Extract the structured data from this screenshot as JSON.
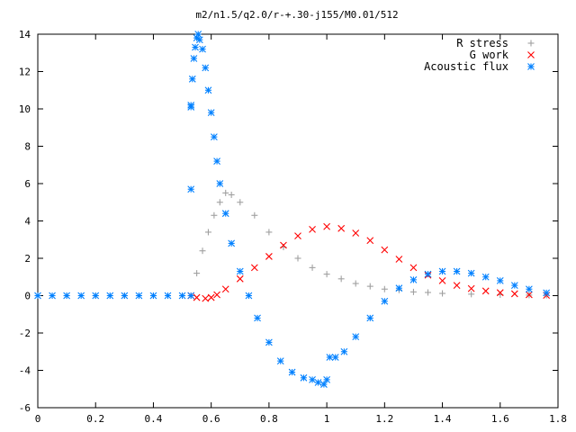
{
  "chart_data": {
    "type": "scatter",
    "title": "m2/n1.5/q2.0/r-+.30-j155/M0.01/512",
    "xlabel": "",
    "ylabel": "",
    "xlim": [
      0,
      1.8
    ],
    "ylim": [
      -6,
      14
    ],
    "xticks": [
      0,
      0.2,
      0.4,
      0.6,
      0.8,
      1,
      1.2,
      1.4,
      1.6,
      1.8
    ],
    "xtick_labels": [
      "0",
      "0.2",
      "0.4",
      "0.6",
      "0.8",
      "1",
      "1.2",
      "1.4",
      "1.6",
      "1.8"
    ],
    "yticks": [
      -6,
      -4,
      -2,
      0,
      2,
      4,
      6,
      8,
      10,
      12,
      14
    ],
    "ytick_labels": [
      "-6",
      "-4",
      "-2",
      "0",
      "2",
      "4",
      "6",
      "8",
      "10",
      "12",
      "14"
    ],
    "grid": false,
    "legend_position": "top-right",
    "series": [
      {
        "name": "R stress",
        "marker": "plus",
        "color": "#a0a0a0",
        "points": [
          [
            0.0,
            0
          ],
          [
            0.1,
            0
          ],
          [
            0.2,
            0
          ],
          [
            0.3,
            0
          ],
          [
            0.4,
            0
          ],
          [
            0.5,
            0
          ],
          [
            0.53,
            0
          ],
          [
            0.55,
            1.2
          ],
          [
            0.57,
            2.4
          ],
          [
            0.59,
            3.4
          ],
          [
            0.61,
            4.3
          ],
          [
            0.63,
            5.0
          ],
          [
            0.65,
            5.5
          ],
          [
            0.67,
            5.4
          ],
          [
            0.7,
            5.0
          ],
          [
            0.75,
            4.3
          ],
          [
            0.8,
            3.4
          ],
          [
            0.85,
            2.6
          ],
          [
            0.9,
            2.0
          ],
          [
            0.95,
            1.5
          ],
          [
            1.0,
            1.15
          ],
          [
            1.05,
            0.9
          ],
          [
            1.1,
            0.65
          ],
          [
            1.15,
            0.5
          ],
          [
            1.2,
            0.35
          ],
          [
            1.25,
            0.3
          ],
          [
            1.3,
            0.2
          ],
          [
            1.35,
            0.17
          ],
          [
            1.4,
            0.12
          ],
          [
            1.5,
            0.08
          ],
          [
            1.6,
            0.05
          ],
          [
            1.7,
            0.03
          ],
          [
            1.76,
            0.02
          ]
        ]
      },
      {
        "name": "G work",
        "marker": "cross",
        "color": "#ff0000",
        "points": [
          [
            0.53,
            0
          ],
          [
            0.55,
            -0.1
          ],
          [
            0.58,
            -0.15
          ],
          [
            0.6,
            -0.1
          ],
          [
            0.62,
            0.05
          ],
          [
            0.65,
            0.35
          ],
          [
            0.7,
            0.9
          ],
          [
            0.75,
            1.5
          ],
          [
            0.8,
            2.1
          ],
          [
            0.85,
            2.7
          ],
          [
            0.9,
            3.2
          ],
          [
            0.95,
            3.55
          ],
          [
            1.0,
            3.7
          ],
          [
            1.05,
            3.6
          ],
          [
            1.1,
            3.35
          ],
          [
            1.15,
            2.95
          ],
          [
            1.2,
            2.45
          ],
          [
            1.25,
            1.95
          ],
          [
            1.3,
            1.5
          ],
          [
            1.35,
            1.1
          ],
          [
            1.4,
            0.8
          ],
          [
            1.45,
            0.55
          ],
          [
            1.5,
            0.38
          ],
          [
            1.55,
            0.25
          ],
          [
            1.6,
            0.16
          ],
          [
            1.65,
            0.1
          ],
          [
            1.7,
            0.05
          ],
          [
            1.76,
            0.02
          ]
        ]
      },
      {
        "name": "Acoustic flux",
        "marker": "star",
        "color": "#0080ff",
        "points": [
          [
            0.0,
            0
          ],
          [
            0.05,
            0
          ],
          [
            0.1,
            0
          ],
          [
            0.15,
            0
          ],
          [
            0.2,
            0
          ],
          [
            0.25,
            0
          ],
          [
            0.3,
            0
          ],
          [
            0.35,
            0
          ],
          [
            0.4,
            0
          ],
          [
            0.45,
            0
          ],
          [
            0.5,
            0
          ],
          [
            0.53,
            0
          ],
          [
            0.53,
            5.7
          ],
          [
            0.53,
            10.1
          ],
          [
            0.53,
            10.2
          ],
          [
            0.535,
            11.6
          ],
          [
            0.54,
            12.7
          ],
          [
            0.545,
            13.3
          ],
          [
            0.55,
            13.8
          ],
          [
            0.555,
            14.0
          ],
          [
            0.56,
            13.7
          ],
          [
            0.57,
            13.2
          ],
          [
            0.58,
            12.2
          ],
          [
            0.59,
            11.0
          ],
          [
            0.6,
            9.8
          ],
          [
            0.61,
            8.5
          ],
          [
            0.62,
            7.2
          ],
          [
            0.63,
            6.0
          ],
          [
            0.65,
            4.4
          ],
          [
            0.67,
            2.8
          ],
          [
            0.7,
            1.3
          ],
          [
            0.73,
            0
          ],
          [
            0.76,
            -1.2
          ],
          [
            0.8,
            -2.5
          ],
          [
            0.84,
            -3.5
          ],
          [
            0.88,
            -4.1
          ],
          [
            0.92,
            -4.4
          ],
          [
            0.95,
            -4.5
          ],
          [
            0.97,
            -4.65
          ],
          [
            0.99,
            -4.75
          ],
          [
            1.0,
            -4.5
          ],
          [
            1.01,
            -3.3
          ],
          [
            1.03,
            -3.3
          ],
          [
            1.06,
            -3.0
          ],
          [
            1.1,
            -2.2
          ],
          [
            1.15,
            -1.2
          ],
          [
            1.2,
            -0.3
          ],
          [
            1.25,
            0.4
          ],
          [
            1.3,
            0.85
          ],
          [
            1.35,
            1.15
          ],
          [
            1.4,
            1.3
          ],
          [
            1.45,
            1.3
          ],
          [
            1.5,
            1.2
          ],
          [
            1.55,
            1.0
          ],
          [
            1.6,
            0.8
          ],
          [
            1.65,
            0.55
          ],
          [
            1.7,
            0.35
          ],
          [
            1.76,
            0.15
          ]
        ]
      }
    ]
  }
}
